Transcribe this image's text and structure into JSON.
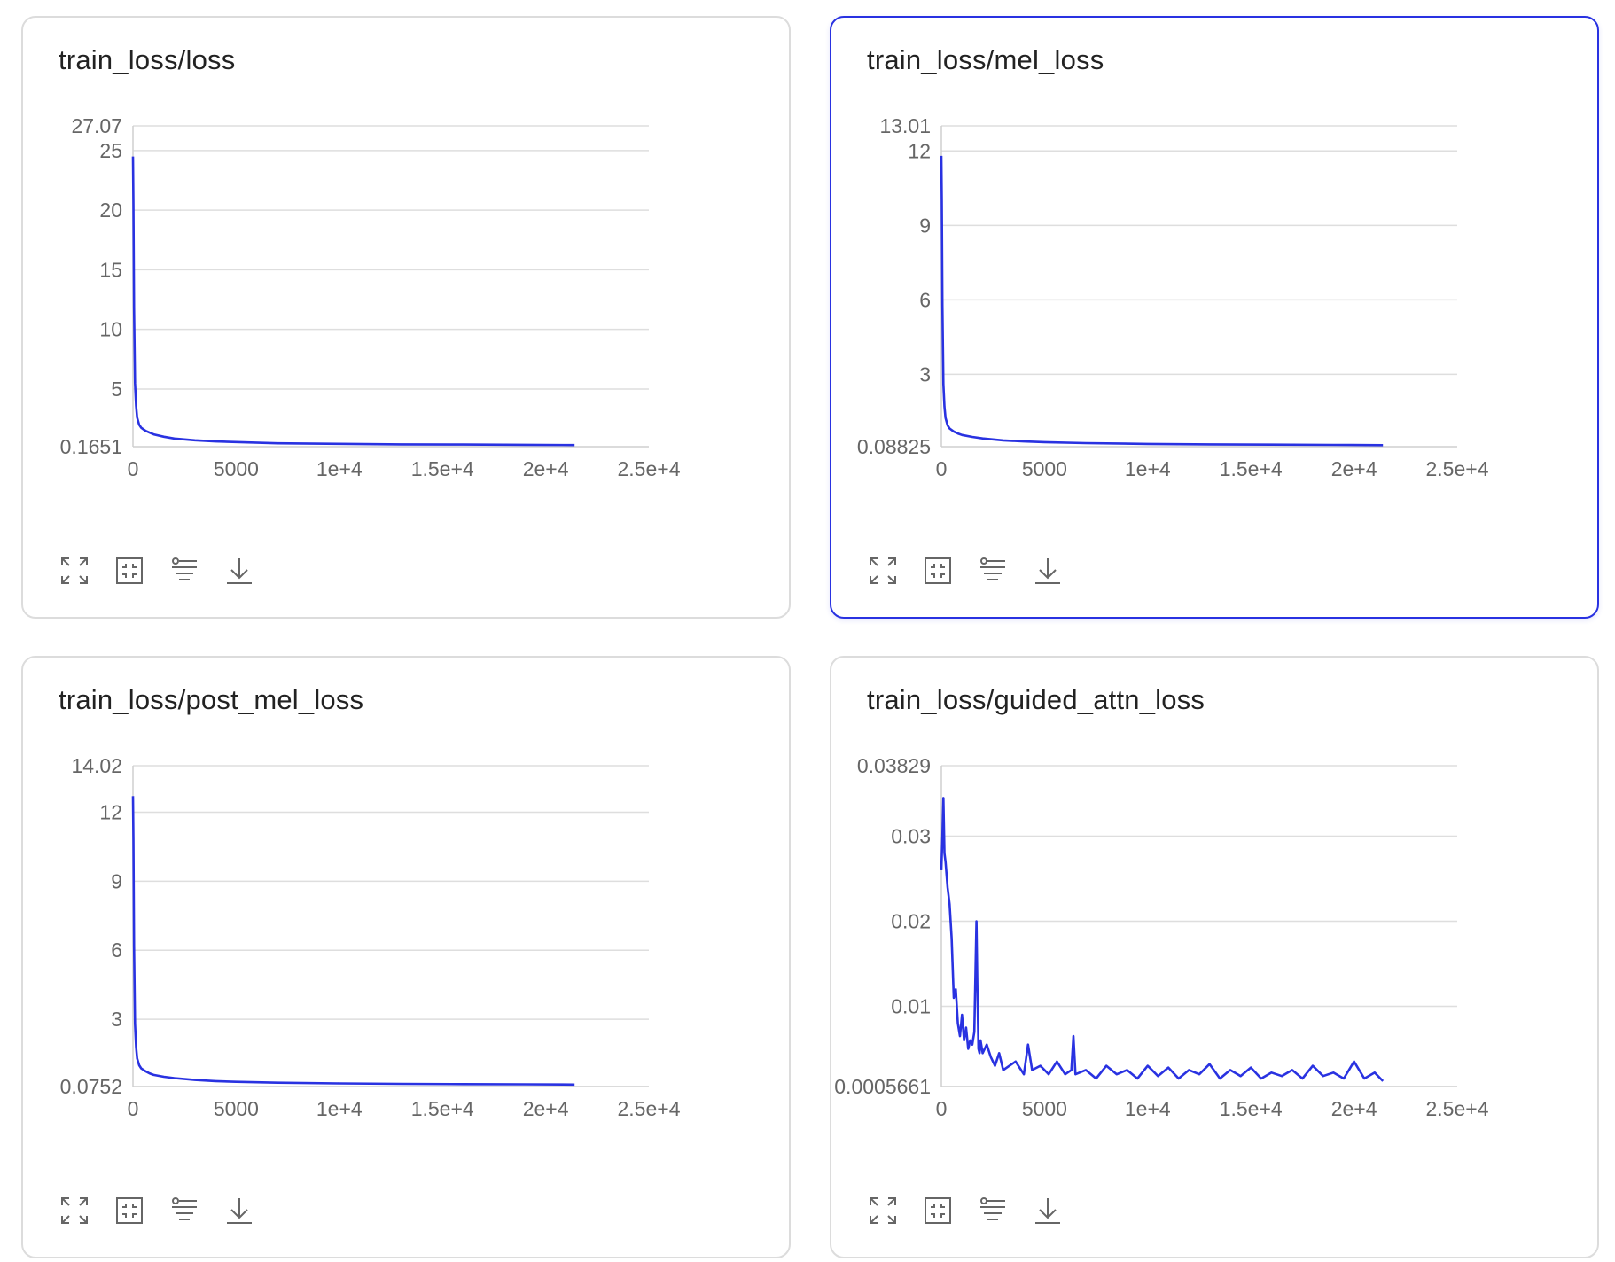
{
  "colors": {
    "line": "#2932e1",
    "grid": "#dedede",
    "axis": "#cfcfcf",
    "tick": "#666666",
    "active_border": "#2932e1"
  },
  "icons": [
    "fullscreen-icon",
    "fit-view-icon",
    "filter-icon",
    "download-icon"
  ],
  "chart_data": [
    {
      "type": "line",
      "title": "train_loss/loss",
      "x_ticks": [
        "0",
        "5000",
        "1e+4",
        "1.5e+4",
        "2e+4",
        "2.5e+4"
      ],
      "y_ticks": [
        "0.1651",
        "5",
        "10",
        "15",
        "20",
        "25",
        "27.07"
      ],
      "xlim": [
        0,
        25000
      ],
      "ylim": [
        0.1651,
        27.07
      ],
      "series": [
        {
          "x": [
            0,
            20,
            50,
            100,
            150,
            200,
            300,
            400,
            600,
            800,
            1000,
            1500,
            2000,
            3000,
            4000,
            5000,
            7000,
            10000,
            13000,
            16000,
            19000,
            21400
          ],
          "y": [
            24.5,
            20.5,
            11.8,
            5.5,
            3.6,
            2.6,
            2.0,
            1.75,
            1.5,
            1.35,
            1.2,
            1.0,
            0.85,
            0.7,
            0.6,
            0.55,
            0.45,
            0.4,
            0.36,
            0.34,
            0.32,
            0.3
          ]
        }
      ]
    },
    {
      "type": "line",
      "title": "train_loss/mel_loss",
      "x_ticks": [
        "0",
        "5000",
        "1e+4",
        "1.5e+4",
        "2e+4",
        "2.5e+4"
      ],
      "y_ticks": [
        "0.08825",
        "3",
        "6",
        "9",
        "12",
        "13.01"
      ],
      "xlim": [
        0,
        25000
      ],
      "ylim": [
        0.08825,
        13.01
      ],
      "series": [
        {
          "x": [
            0,
            20,
            50,
            100,
            150,
            200,
            300,
            400,
            600,
            800,
            1000,
            1500,
            2000,
            3000,
            4000,
            5000,
            7000,
            10000,
            13000,
            16000,
            19000,
            21400
          ],
          "y": [
            11.8,
            10.0,
            5.8,
            2.6,
            1.7,
            1.25,
            0.95,
            0.82,
            0.7,
            0.62,
            0.56,
            0.48,
            0.42,
            0.34,
            0.3,
            0.27,
            0.23,
            0.2,
            0.18,
            0.17,
            0.16,
            0.15
          ]
        }
      ]
    },
    {
      "type": "line",
      "title": "train_loss/post_mel_loss",
      "x_ticks": [
        "0",
        "5000",
        "1e+4",
        "1.5e+4",
        "2e+4",
        "2.5e+4"
      ],
      "y_ticks": [
        "0.0752",
        "3",
        "6",
        "9",
        "12",
        "14.02"
      ],
      "xlim": [
        0,
        25000
      ],
      "ylim": [
        0.0752,
        14.02
      ],
      "series": [
        {
          "x": [
            0,
            20,
            50,
            100,
            150,
            200,
            300,
            400,
            600,
            800,
            1000,
            1500,
            2000,
            3000,
            4000,
            5000,
            7000,
            10000,
            13000,
            16000,
            19000,
            21400
          ],
          "y": [
            12.7,
            10.8,
            6.2,
            2.8,
            1.8,
            1.3,
            1.0,
            0.86,
            0.74,
            0.65,
            0.58,
            0.5,
            0.44,
            0.36,
            0.31,
            0.28,
            0.24,
            0.21,
            0.19,
            0.18,
            0.17,
            0.16
          ]
        }
      ]
    },
    {
      "type": "line",
      "title": "train_loss/guided_attn_loss",
      "x_ticks": [
        "0",
        "5000",
        "1e+4",
        "1.5e+4",
        "2e+4",
        "2.5e+4"
      ],
      "y_ticks": [
        "0.0005661",
        "0.01",
        "0.02",
        "0.03",
        "0.03829"
      ],
      "xlim": [
        0,
        25000
      ],
      "ylim": [
        0.0005661,
        0.03829
      ],
      "series": [
        {
          "x": [
            0,
            50,
            100,
            150,
            200,
            300,
            400,
            500,
            600,
            700,
            800,
            900,
            1000,
            1100,
            1200,
            1300,
            1400,
            1500,
            1600,
            1700,
            1750,
            1800,
            1850,
            1900,
            2000,
            2200,
            2400,
            2600,
            2800,
            3000,
            3300,
            3600,
            4000,
            4200,
            4400,
            4800,
            5200,
            5600,
            6000,
            6300,
            6400,
            6500,
            7000,
            7500,
            8000,
            8500,
            9000,
            9500,
            10000,
            10500,
            11000,
            11500,
            12000,
            12500,
            13000,
            13500,
            14000,
            14500,
            15000,
            15500,
            16000,
            16500,
            17000,
            17500,
            18000,
            18500,
            19000,
            19500,
            20000,
            20500,
            21000,
            21400
          ],
          "y": [
            0.026,
            0.03,
            0.0345,
            0.028,
            0.027,
            0.024,
            0.022,
            0.018,
            0.011,
            0.012,
            0.008,
            0.0065,
            0.009,
            0.006,
            0.0075,
            0.005,
            0.006,
            0.0055,
            0.007,
            0.02,
            0.012,
            0.005,
            0.0045,
            0.006,
            0.0045,
            0.0055,
            0.004,
            0.003,
            0.0045,
            0.0025,
            0.003,
            0.0035,
            0.002,
            0.0055,
            0.0025,
            0.003,
            0.002,
            0.0035,
            0.002,
            0.0025,
            0.0065,
            0.002,
            0.0025,
            0.0015,
            0.003,
            0.002,
            0.0025,
            0.0015,
            0.003,
            0.0018,
            0.0028,
            0.0015,
            0.0025,
            0.002,
            0.0032,
            0.0015,
            0.0025,
            0.0018,
            0.0028,
            0.0015,
            0.0022,
            0.0018,
            0.0025,
            0.0015,
            0.003,
            0.0018,
            0.0022,
            0.0015,
            0.0035,
            0.0015,
            0.0022,
            0.0012
          ]
        }
      ]
    }
  ]
}
